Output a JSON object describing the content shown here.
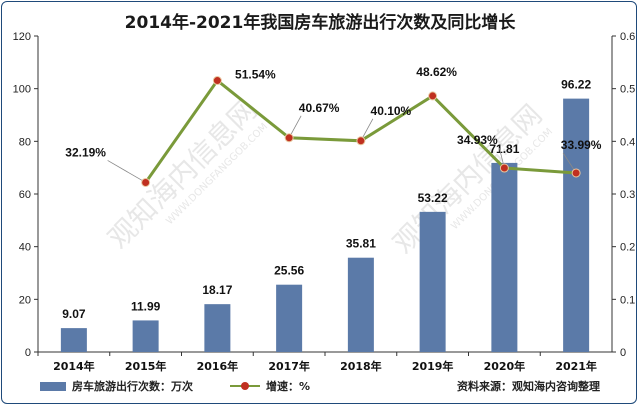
{
  "chart_data": {
    "type": "bar+line",
    "title": "2014年-2021年我国房车旅游出行次数及同比增长",
    "categories": [
      "2014年",
      "2015年",
      "2016年",
      "2017年",
      "2018年",
      "2019年",
      "2020年",
      "2021年"
    ],
    "series": [
      {
        "name": "房车旅游出行次数：万次",
        "type": "bar",
        "axis": "left",
        "values": [
          9.07,
          11.99,
          18.17,
          25.56,
          35.81,
          53.22,
          71.81,
          96.22
        ],
        "labels": [
          "9.07",
          "11.99",
          "18.17",
          "25.56",
          "35.81",
          "53.22",
          "71.81",
          "96.22"
        ]
      },
      {
        "name": "增速：%",
        "type": "line",
        "axis": "right",
        "x": [
          "2015年",
          "2016年",
          "2017年",
          "2018年",
          "2019年",
          "2020年",
          "2021年"
        ],
        "values": [
          0.3219,
          0.5154,
          0.4067,
          0.401,
          0.4862,
          0.3493,
          0.3399
        ],
        "labels": [
          "32.19%",
          "51.54%",
          "40.67%",
          "40.10%",
          "48.62%",
          "34.93%",
          "33.99%"
        ]
      }
    ],
    "y_left": {
      "range": [
        0,
        120
      ],
      "ticks": [
        "0",
        "20",
        "40",
        "60",
        "80",
        "100",
        "120"
      ]
    },
    "y_right": {
      "range": [
        0,
        0.6
      ],
      "ticks": [
        "0",
        "0.1",
        "0.2",
        "0.3",
        "0.4",
        "0.5",
        "0.6"
      ]
    },
    "grid": false,
    "legend_position": "bottom-left"
  },
  "source": "资料来源：观知海内咨询整理",
  "watermark": {
    "text": "观知海内信息网",
    "subtext": "WWW.DONGFANGGOB.COM"
  },
  "colors": {
    "bar": "#5b7aa8",
    "line": "#7a9a3a",
    "marker": "#c03020",
    "frame": "#1f4a7a"
  }
}
